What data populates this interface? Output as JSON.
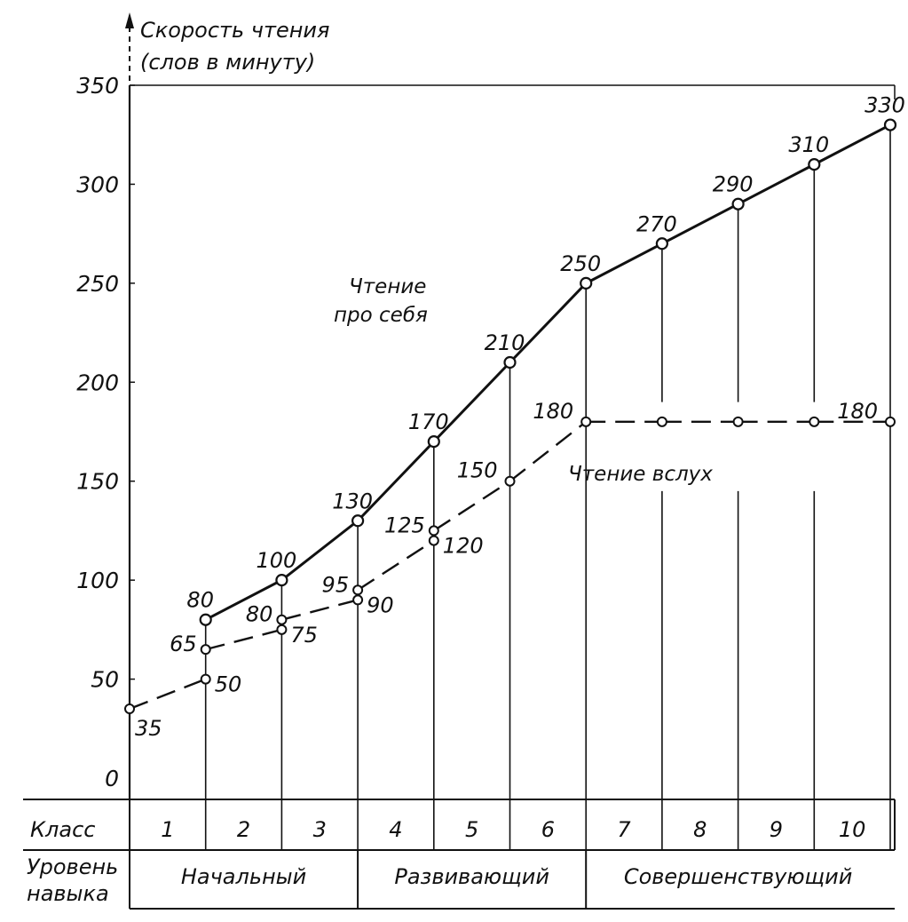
{
  "chart_data": {
    "type": "line",
    "ylabel": [
      "Скорость чтения",
      "(слов в минуту)"
    ],
    "ylim": [
      0,
      350
    ],
    "y_ticks": [
      "0",
      "50",
      "100",
      "150",
      "200",
      "250",
      "300",
      "350"
    ],
    "categories": [
      "1",
      "2",
      "3",
      "4",
      "5",
      "6",
      "7",
      "8",
      "9",
      "10"
    ],
    "row_labels": {
      "grade": "Класс",
      "level": [
        "Уровень",
        "навыка"
      ]
    },
    "levels": [
      {
        "name": "Начальный",
        "span": [
          1,
          3
        ]
      },
      {
        "name": "Развивающий",
        "span": [
          4,
          6
        ]
      },
      {
        "name": "Совершенствующий",
        "span": [
          7,
          10
        ]
      }
    ],
    "series": [
      {
        "name": "Чтение про себя",
        "name_lines": [
          "Чтение",
          "про себя"
        ],
        "style": "solid",
        "points": [
          {
            "x": 1,
            "y": 80,
            "label": "80"
          },
          {
            "x": 2,
            "y": 100,
            "label": "100"
          },
          {
            "x": 3,
            "y": 130,
            "label": "130"
          },
          {
            "x": 4,
            "y": 170,
            "label": "170"
          },
          {
            "x": 5,
            "y": 210,
            "label": "210"
          },
          {
            "x": 6,
            "y": 250,
            "label": "250"
          },
          {
            "x": 7,
            "y": 270,
            "label": "270"
          },
          {
            "x": 8,
            "y": 290,
            "label": "290"
          },
          {
            "x": 9,
            "y": 310,
            "label": "310"
          },
          {
            "x": 10,
            "y": 330,
            "label": "330"
          }
        ]
      },
      {
        "name": "Чтение вслух",
        "name_lines": [
          "Чтение вслух"
        ],
        "style": "dashed",
        "points": [
          {
            "x": 0,
            "y": 35,
            "label": "35"
          },
          {
            "x": 1,
            "y": 50,
            "label": "50"
          },
          {
            "x": 1,
            "y": 65,
            "label": "65"
          },
          {
            "x": 2,
            "y": 75,
            "label": "75"
          },
          {
            "x": 2,
            "y": 80,
            "label": "80"
          },
          {
            "x": 3,
            "y": 90,
            "label": "90"
          },
          {
            "x": 3,
            "y": 95,
            "label": "95"
          },
          {
            "x": 4,
            "y": 120,
            "label": "120"
          },
          {
            "x": 4,
            "y": 125,
            "label": "125"
          },
          {
            "x": 5,
            "y": 150,
            "label": "150"
          },
          {
            "x": 6,
            "y": 180,
            "label": "180"
          },
          {
            "x": 7,
            "y": 180,
            "label": ""
          },
          {
            "x": 8,
            "y": 180,
            "label": ""
          },
          {
            "x": 9,
            "y": 180,
            "label": ""
          },
          {
            "x": 10,
            "y": 180,
            "label": "180"
          }
        ]
      }
    ]
  }
}
